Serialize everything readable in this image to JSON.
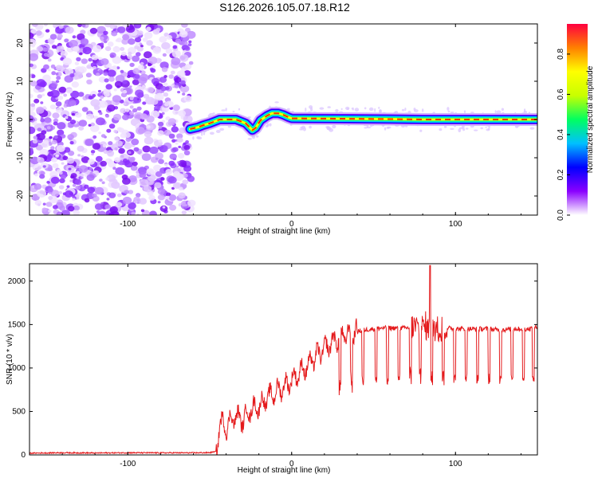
{
  "figure_title": "S126.2026.105.07.18.R12",
  "chart_data": [
    {
      "type": "heatmap",
      "xlabel": "Height of straight line (km)",
      "ylabel": "Frequency (Hz)",
      "xlim": [
        -160,
        150
      ],
      "ylim": [
        -25,
        25
      ],
      "xticks": [
        -100,
        0,
        100
      ],
      "xtick_labels": [
        "-100",
        "0",
        "100"
      ],
      "yticks": [
        -20,
        -10,
        0,
        10,
        20
      ],
      "ytick_labels": [
        "-20",
        "-10",
        "0",
        "10",
        "20"
      ],
      "noise_region_x": [
        -160,
        -61
      ],
      "signal_track": {
        "x": [
          -62,
          -57,
          -54,
          -50,
          -44,
          -39,
          -34,
          -28,
          -24,
          -22,
          -19,
          -15,
          -12,
          -8,
          -5,
          -2,
          0,
          30,
          60,
          80,
          100,
          120,
          150
        ],
        "freq": [
          -2.5,
          -2.0,
          -1.5,
          -1.0,
          0.0,
          0.0,
          0.0,
          -1.0,
          -2.8,
          -2.2,
          -0.2,
          1.0,
          1.6,
          1.6,
          1.2,
          0.6,
          0.3,
          0.2,
          0.1,
          0.0,
          0.0,
          0.0,
          0.0
        ]
      },
      "colorbar": {
        "label": "Normalized spectral amplitude",
        "range": [
          0.0,
          0.95
        ],
        "ticks": [
          0.0,
          0.2,
          0.4,
          0.6,
          0.8
        ],
        "tick_labels": [
          "0.0",
          "0.2",
          "0.4",
          "0.6",
          "0.8"
        ],
        "colors": [
          "#ffffff",
          "#8a00ff",
          "#0000ff",
          "#00c0ff",
          "#00ff60",
          "#c8ff00",
          "#ffff00",
          "#ff8000",
          "#ff0040"
        ]
      }
    },
    {
      "type": "line",
      "xlabel": "Height of straight line (km)",
      "ylabel": "SNR (10 * v/v)",
      "xlim": [
        -160,
        150
      ],
      "ylim": [
        0,
        2200
      ],
      "xticks": [
        -100,
        0,
        100
      ],
      "xtick_labels": [
        "-100",
        "0",
        "100"
      ],
      "yticks": [
        0,
        500,
        1000,
        1500,
        2000
      ],
      "ytick_labels": [
        "0",
        "500",
        "1000",
        "1500",
        "2000"
      ],
      "line_color": "#e41a1c",
      "series": [
        {
          "name": "SNR",
          "x": [
            -160,
            -140,
            -120,
            -100,
            -80,
            -60,
            -50,
            -46,
            -45,
            -44,
            -40,
            -35,
            -30,
            -25,
            -20,
            -15,
            -10,
            -5,
            0,
            5,
            10,
            15,
            20,
            25,
            30,
            35,
            40,
            45,
            50,
            55,
            60,
            65,
            70,
            75,
            80,
            85,
            90,
            95,
            100,
            105,
            110,
            115,
            120,
            125,
            130,
            135,
            140,
            145,
            150
          ],
          "values": [
            20,
            25,
            22,
            25,
            24,
            24,
            26,
            40,
            180,
            380,
            320,
            450,
            400,
            520,
            560,
            650,
            720,
            780,
            860,
            950,
            1030,
            1140,
            1220,
            1300,
            1360,
            1400,
            1420,
            1440,
            1450,
            1460,
            1460,
            1460,
            1460,
            1470,
            1470,
            1470,
            1460,
            1460,
            1450,
            1450,
            1450,
            1450,
            1450,
            1440,
            1440,
            1450,
            1450,
            1450,
            1470
          ]
        }
      ]
    }
  ]
}
